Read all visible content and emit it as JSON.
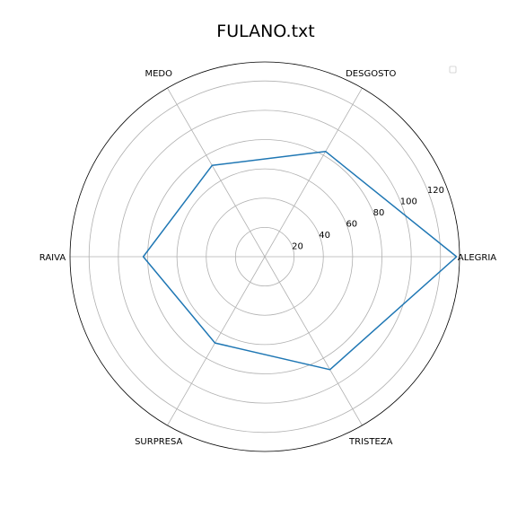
{
  "chart_data": {
    "type": "radar",
    "title": "FULANO.txt",
    "categories": [
      "ALEGRIA",
      "DESGOSTO",
      "MEDO",
      "RAIVA",
      "SURPRESA",
      "TRISTEZA"
    ],
    "series": [
      {
        "values": [
          131,
          83,
          72,
          83,
          68,
          89
        ]
      }
    ],
    "rlim": [
      0,
      133
    ],
    "rticks": [
      20,
      40,
      60,
      80,
      100,
      120
    ],
    "grid": true,
    "legend": "top-right",
    "colors": {
      "series": "#1f77b4",
      "grid": "#b0b0b0",
      "frame": "#000000"
    }
  }
}
